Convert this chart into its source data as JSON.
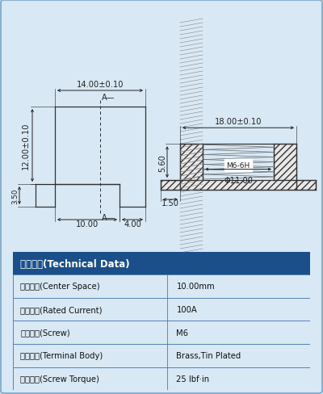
{
  "bg_color": "#d8e8f4",
  "inner_bg": "#d8e8f4",
  "border_color": "#8ab0cc",
  "table_header_bg": "#1a4f8a",
  "table_header_fg": "#ffffff",
  "table_row_bg": "#d8e8f4",
  "table_border": "#4a7ab5",
  "table_text_color": "#111111",
  "table_header_text": "技术参数(Technical Data)",
  "table_rows": [
    [
      "间　　距(Center Space)",
      "10.00mm"
    ],
    [
      "额定电流(Rated Current)",
      "100A"
    ],
    [
      "压线螺钉(Screw)",
      "M6"
    ],
    [
      "焊接端子(Terminal Body)",
      "Brass,Tin Plated"
    ],
    [
      "螺钉扔矩(Screw Torque)",
      "25 lbf·in"
    ]
  ],
  "dim_color": "#222222",
  "draw_color": "#333333",
  "dim_text_size": 6.8,
  "dim_14": "14.00±0.10",
  "dim_12": "12.00±0.10",
  "dim_3_5": "3.50",
  "dim_10": "10.00",
  "dim_4": "4.00",
  "dim_18": "18.00±0.10",
  "dim_5_6": "5.60",
  "dim_11": "Φ11.00",
  "dim_1_5": "1.50",
  "label_M6": "M6-6H"
}
